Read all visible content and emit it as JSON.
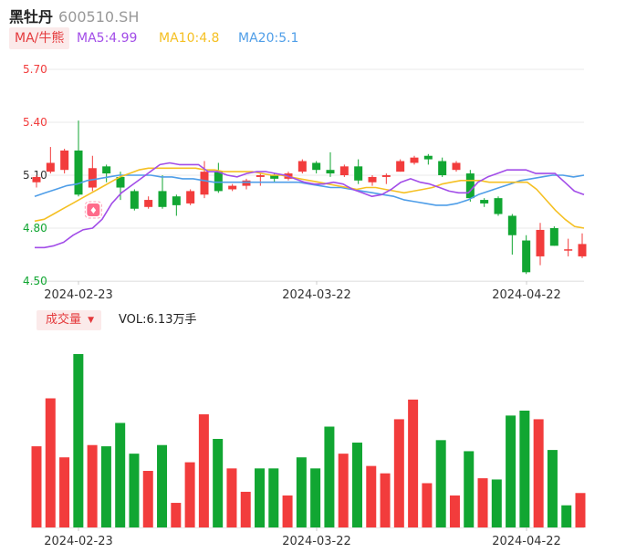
{
  "header": {
    "name": "黑牡丹",
    "code": "600510.SH"
  },
  "ma_legend": {
    "button": "MA/牛熊",
    "items": [
      {
        "label": "MA5:4.99",
        "color": "#a24de8"
      },
      {
        "label": "MA10:4.8",
        "color": "#f5c023"
      },
      {
        "label": "MA20:5.1",
        "color": "#4f9ee8"
      }
    ]
  },
  "volume_legend": {
    "button": "成交量",
    "text": "VOL:6.13万手"
  },
  "colors": {
    "up": "#f23c3c",
    "down": "#11a632",
    "ma5": "#a24de8",
    "ma10": "#f5c023",
    "ma20": "#4f9ee8"
  },
  "chart_data": [
    {
      "type": "candlestick",
      "y_ticks": [
        "5.70",
        "5.40",
        "5.10",
        "4.80",
        "4.50"
      ],
      "ylim": [
        4.5,
        5.7
      ],
      "x_labels": [
        "2024-02-23",
        "2024-03-22",
        "2024-04-22"
      ],
      "marker": {
        "index": 4,
        "icon": "bull-market-icon"
      },
      "candles": [
        {
          "o": 5.06,
          "c": 5.09,
          "h": 5.1,
          "l": 5.03
        },
        {
          "o": 5.12,
          "c": 5.17,
          "h": 5.26,
          "l": 5.11
        },
        {
          "o": 5.13,
          "c": 5.24,
          "h": 5.25,
          "l": 5.11
        },
        {
          "o": 5.24,
          "c": 4.99,
          "h": 5.41,
          "l": 4.98
        },
        {
          "o": 5.03,
          "c": 5.14,
          "h": 5.21,
          "l": 5.01
        },
        {
          "o": 5.15,
          "c": 5.11,
          "h": 5.16,
          "l": 5.06
        },
        {
          "o": 5.09,
          "c": 5.03,
          "h": 5.12,
          "l": 4.96
        },
        {
          "o": 5.01,
          "c": 4.91,
          "h": 5.02,
          "l": 4.9
        },
        {
          "o": 4.92,
          "c": 4.96,
          "h": 4.98,
          "l": 4.91
        },
        {
          "o": 5.01,
          "c": 4.92,
          "h": 5.1,
          "l": 4.91
        },
        {
          "o": 4.98,
          "c": 4.93,
          "h": 4.99,
          "l": 4.87
        },
        {
          "o": 4.94,
          "c": 5.01,
          "h": 5.02,
          "l": 4.93
        },
        {
          "o": 4.99,
          "c": 5.12,
          "h": 5.18,
          "l": 4.97
        },
        {
          "o": 5.12,
          "c": 5.01,
          "h": 5.17,
          "l": 5.0
        },
        {
          "o": 5.02,
          "c": 5.04,
          "h": 5.05,
          "l": 5.01
        },
        {
          "o": 5.04,
          "c": 5.07,
          "h": 5.08,
          "l": 5.02
        },
        {
          "o": 5.09,
          "c": 5.1,
          "h": 5.11,
          "l": 5.04
        },
        {
          "o": 5.1,
          "c": 5.08,
          "h": 5.11,
          "l": 5.06
        },
        {
          "o": 5.08,
          "c": 5.11,
          "h": 5.12,
          "l": 5.07
        },
        {
          "o": 5.12,
          "c": 5.18,
          "h": 5.19,
          "l": 5.11
        },
        {
          "o": 5.17,
          "c": 5.13,
          "h": 5.18,
          "l": 5.11
        },
        {
          "o": 5.13,
          "c": 5.11,
          "h": 5.23,
          "l": 5.09
        },
        {
          "o": 5.1,
          "c": 5.15,
          "h": 5.16,
          "l": 5.09
        },
        {
          "o": 5.15,
          "c": 5.07,
          "h": 5.19,
          "l": 5.05
        },
        {
          "o": 5.06,
          "c": 5.09,
          "h": 5.1,
          "l": 5.04
        },
        {
          "o": 5.09,
          "c": 5.1,
          "h": 5.11,
          "l": 5.05
        },
        {
          "o": 5.12,
          "c": 5.18,
          "h": 5.19,
          "l": 5.12
        },
        {
          "o": 5.17,
          "c": 5.2,
          "h": 5.21,
          "l": 5.16
        },
        {
          "o": 5.21,
          "c": 5.19,
          "h": 5.22,
          "l": 5.16
        },
        {
          "o": 5.18,
          "c": 5.1,
          "h": 5.2,
          "l": 5.09
        },
        {
          "o": 5.13,
          "c": 5.17,
          "h": 5.18,
          "l": 5.12
        },
        {
          "o": 5.11,
          "c": 4.97,
          "h": 5.13,
          "l": 4.95
        },
        {
          "o": 4.96,
          "c": 4.94,
          "h": 4.97,
          "l": 4.92
        },
        {
          "o": 4.97,
          "c": 4.88,
          "h": 4.98,
          "l": 4.87
        },
        {
          "o": 4.87,
          "c": 4.76,
          "h": 4.88,
          "l": 4.65
        },
        {
          "o": 4.73,
          "c": 4.55,
          "h": 4.76,
          "l": 4.54
        },
        {
          "o": 4.64,
          "c": 4.79,
          "h": 4.83,
          "l": 4.59
        },
        {
          "o": 4.8,
          "c": 4.7,
          "h": 4.81,
          "l": 4.7
        },
        {
          "o": 4.68,
          "c": 4.68,
          "h": 4.74,
          "l": 4.64
        },
        {
          "o": 4.64,
          "c": 4.71,
          "h": 4.77,
          "l": 4.63
        }
      ],
      "ma5": [
        4.69,
        4.69,
        4.7,
        4.72,
        4.76,
        4.79,
        4.8,
        4.85,
        4.94,
        5.0,
        5.04,
        5.08,
        5.12,
        5.16,
        5.17,
        5.16,
        5.16,
        5.16,
        5.12,
        5.12,
        5.1,
        5.09,
        5.11,
        5.12,
        5.12,
        5.11,
        5.1,
        5.08,
        5.06,
        5.05,
        5.05,
        5.06,
        5.05,
        5.02,
        5.0,
        4.98,
        4.99,
        5.02,
        5.06,
        5.08,
        5.06,
        5.05,
        5.03,
        5.01,
        5.0,
        5.0,
        5.06,
        5.09,
        5.11,
        5.13,
        5.13,
        5.13,
        5.11,
        5.11,
        5.11,
        5.06,
        5.01,
        4.99
      ],
      "ma10": [
        4.84,
        4.85,
        4.88,
        4.91,
        4.94,
        4.97,
        5.0,
        5.03,
        5.06,
        5.09,
        5.11,
        5.13,
        5.14,
        5.14,
        5.14,
        5.14,
        5.14,
        5.14,
        5.13,
        5.13,
        5.12,
        5.12,
        5.12,
        5.12,
        5.11,
        5.1,
        5.1,
        5.09,
        5.08,
        5.07,
        5.06,
        5.05,
        5.04,
        5.03,
        5.02,
        5.03,
        5.03,
        5.02,
        5.01,
        5.0,
        5.01,
        5.02,
        5.03,
        5.05,
        5.06,
        5.07,
        5.07,
        5.07,
        5.06,
        5.06,
        5.06,
        5.06,
        5.06,
        5.02,
        4.96,
        4.9,
        4.85,
        4.81,
        4.8
      ],
      "ma20": [
        4.98,
        5.0,
        5.02,
        5.04,
        5.05,
        5.07,
        5.08,
        5.09,
        5.1,
        5.1,
        5.1,
        5.1,
        5.09,
        5.09,
        5.08,
        5.08,
        5.07,
        5.06,
        5.06,
        5.06,
        5.06,
        5.06,
        5.06,
        5.06,
        5.06,
        5.06,
        5.05,
        5.04,
        5.03,
        5.03,
        5.02,
        5.01,
        5.0,
        4.99,
        4.98,
        4.96,
        4.95,
        4.94,
        4.93,
        4.93,
        4.94,
        4.96,
        4.99,
        5.01,
        5.03,
        5.05,
        5.07,
        5.08,
        5.09,
        5.1,
        5.1,
        5.09,
        5.1
      ]
    },
    {
      "type": "bar",
      "title": "成交量",
      "x_labels": [
        "2024-02-23",
        "2024-03-22",
        "2024-04-22"
      ],
      "values": [
        6.6,
        10.5,
        5.7,
        14.1,
        6.7,
        6.6,
        8.5,
        6.0,
        4.6,
        6.7,
        2.0,
        5.3,
        9.2,
        7.2,
        4.8,
        2.9,
        4.8,
        4.8,
        2.6,
        5.7,
        4.8,
        8.2,
        6.0,
        6.9,
        5.0,
        4.4,
        8.8,
        10.4,
        3.6,
        7.1,
        2.6,
        6.2,
        4.0,
        3.9,
        9.1,
        9.5,
        8.8,
        6.3,
        1.8,
        2.8
      ],
      "direction": [
        "up",
        "up",
        "up",
        "down",
        "up",
        "down",
        "down",
        "down",
        "up",
        "down",
        "up",
        "up",
        "up",
        "down",
        "up",
        "up",
        "down",
        "down",
        "up",
        "down",
        "down",
        "down",
        "up",
        "down",
        "up",
        "up",
        "up",
        "up",
        "up",
        "down",
        "up",
        "down",
        "up",
        "down",
        "down",
        "down",
        "up",
        "down",
        "down",
        "up"
      ]
    }
  ]
}
